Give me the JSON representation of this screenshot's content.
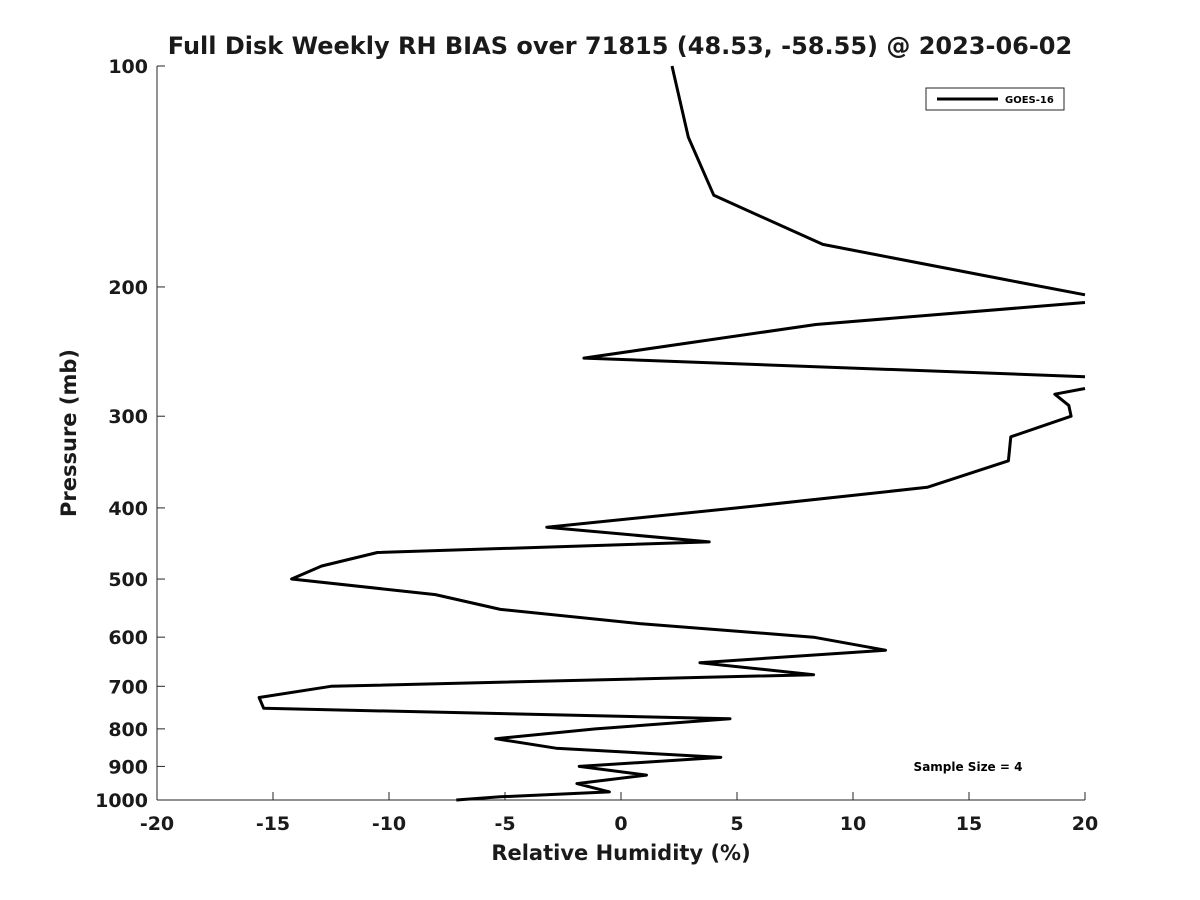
{
  "chart_data": {
    "type": "line",
    "title": "Full Disk Weekly RH BIAS over 71815 (48.53, -58.55) @ 2023-06-02",
    "xlabel": "Relative Humidity (%)",
    "ylabel": "Pressure (mb)",
    "xlim": [
      -20,
      20
    ],
    "ylim": [
      100,
      1000
    ],
    "y_scale": "log",
    "y_reversed": true,
    "grid": false,
    "legend_position": "top-right",
    "x_ticks": [
      "-20",
      "-15",
      "-10",
      "-5",
      "0",
      "5",
      "10",
      "15",
      "20"
    ],
    "y_ticks": [
      "100",
      "200",
      "300",
      "400",
      "500",
      "600",
      "700",
      "800",
      "900",
      "1000"
    ],
    "series": [
      {
        "name": "GOES-16",
        "color": "#000000",
        "x": [
          2.2,
          2.9,
          4.0,
          8.7,
          16.4,
          20.0,
          null,
          20.0,
          8.4,
          -1.6,
          20.0,
          null,
          20.0,
          18.7,
          19.3,
          19.4,
          16.8,
          16.7,
          13.2,
          5.0,
          -3.2,
          3.8,
          -10.5,
          -12.9,
          -14.2,
          -8.0,
          -5.2,
          0.8,
          8.3,
          11.4,
          3.4,
          8.3,
          -12.5,
          -15.6,
          -15.4,
          4.7,
          -1.1,
          -5.4,
          -2.8,
          4.3,
          -1.8,
          1.1,
          -1.9,
          -0.5,
          -5.2,
          -7.1
        ],
        "y": [
          100,
          125,
          150,
          175,
          195,
          205,
          null,
          210,
          225,
          250,
          265,
          null,
          275,
          280,
          290,
          300,
          320,
          345,
          375,
          400,
          425,
          445,
          460,
          480,
          500,
          525,
          550,
          575,
          600,
          625,
          650,
          675,
          700,
          725,
          750,
          775,
          800,
          825,
          850,
          875,
          900,
          925,
          950,
          975,
          990,
          1000
        ]
      }
    ],
    "annotations": [
      "Sample Size = 4"
    ]
  }
}
